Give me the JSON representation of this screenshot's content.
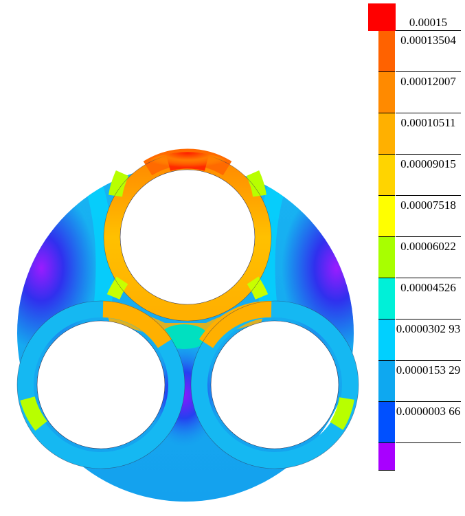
{
  "legend": {
    "entries": [
      {
        "label": "0.00015",
        "color": "#ff0000"
      },
      {
        "label": "0.00013504",
        "color": "#ff6200"
      },
      {
        "label": "0.00012007",
        "color": "#ff8a00"
      },
      {
        "label": "0.00010511",
        "color": "#ffb000"
      },
      {
        "label": "0.00009015",
        "color": "#ffd400"
      },
      {
        "label": "0.00007518",
        "color": "#ffff00"
      },
      {
        "label": "0.00006022",
        "color": "#a8ff00"
      },
      {
        "label": "0.00004526",
        "color": "#00f0d8"
      },
      {
        "label": "0.0000302 93",
        "color": "#00d0ff"
      },
      {
        "label": "0.0000153 29",
        "color": "#0ea8f0"
      },
      {
        "label": "0.0000003 66",
        "color": "#0050ff"
      },
      {
        "label": "",
        "color": "#a800ff"
      }
    ]
  },
  "field_colors": {
    "background_field": "#1aa8f0",
    "low": "#2438e8",
    "minimum": "#8a18ff",
    "ring_mid": "#ffb000",
    "ring_high": "#ff6a00",
    "maximum": "#ff2a00",
    "transition": "#b8ff00"
  }
}
